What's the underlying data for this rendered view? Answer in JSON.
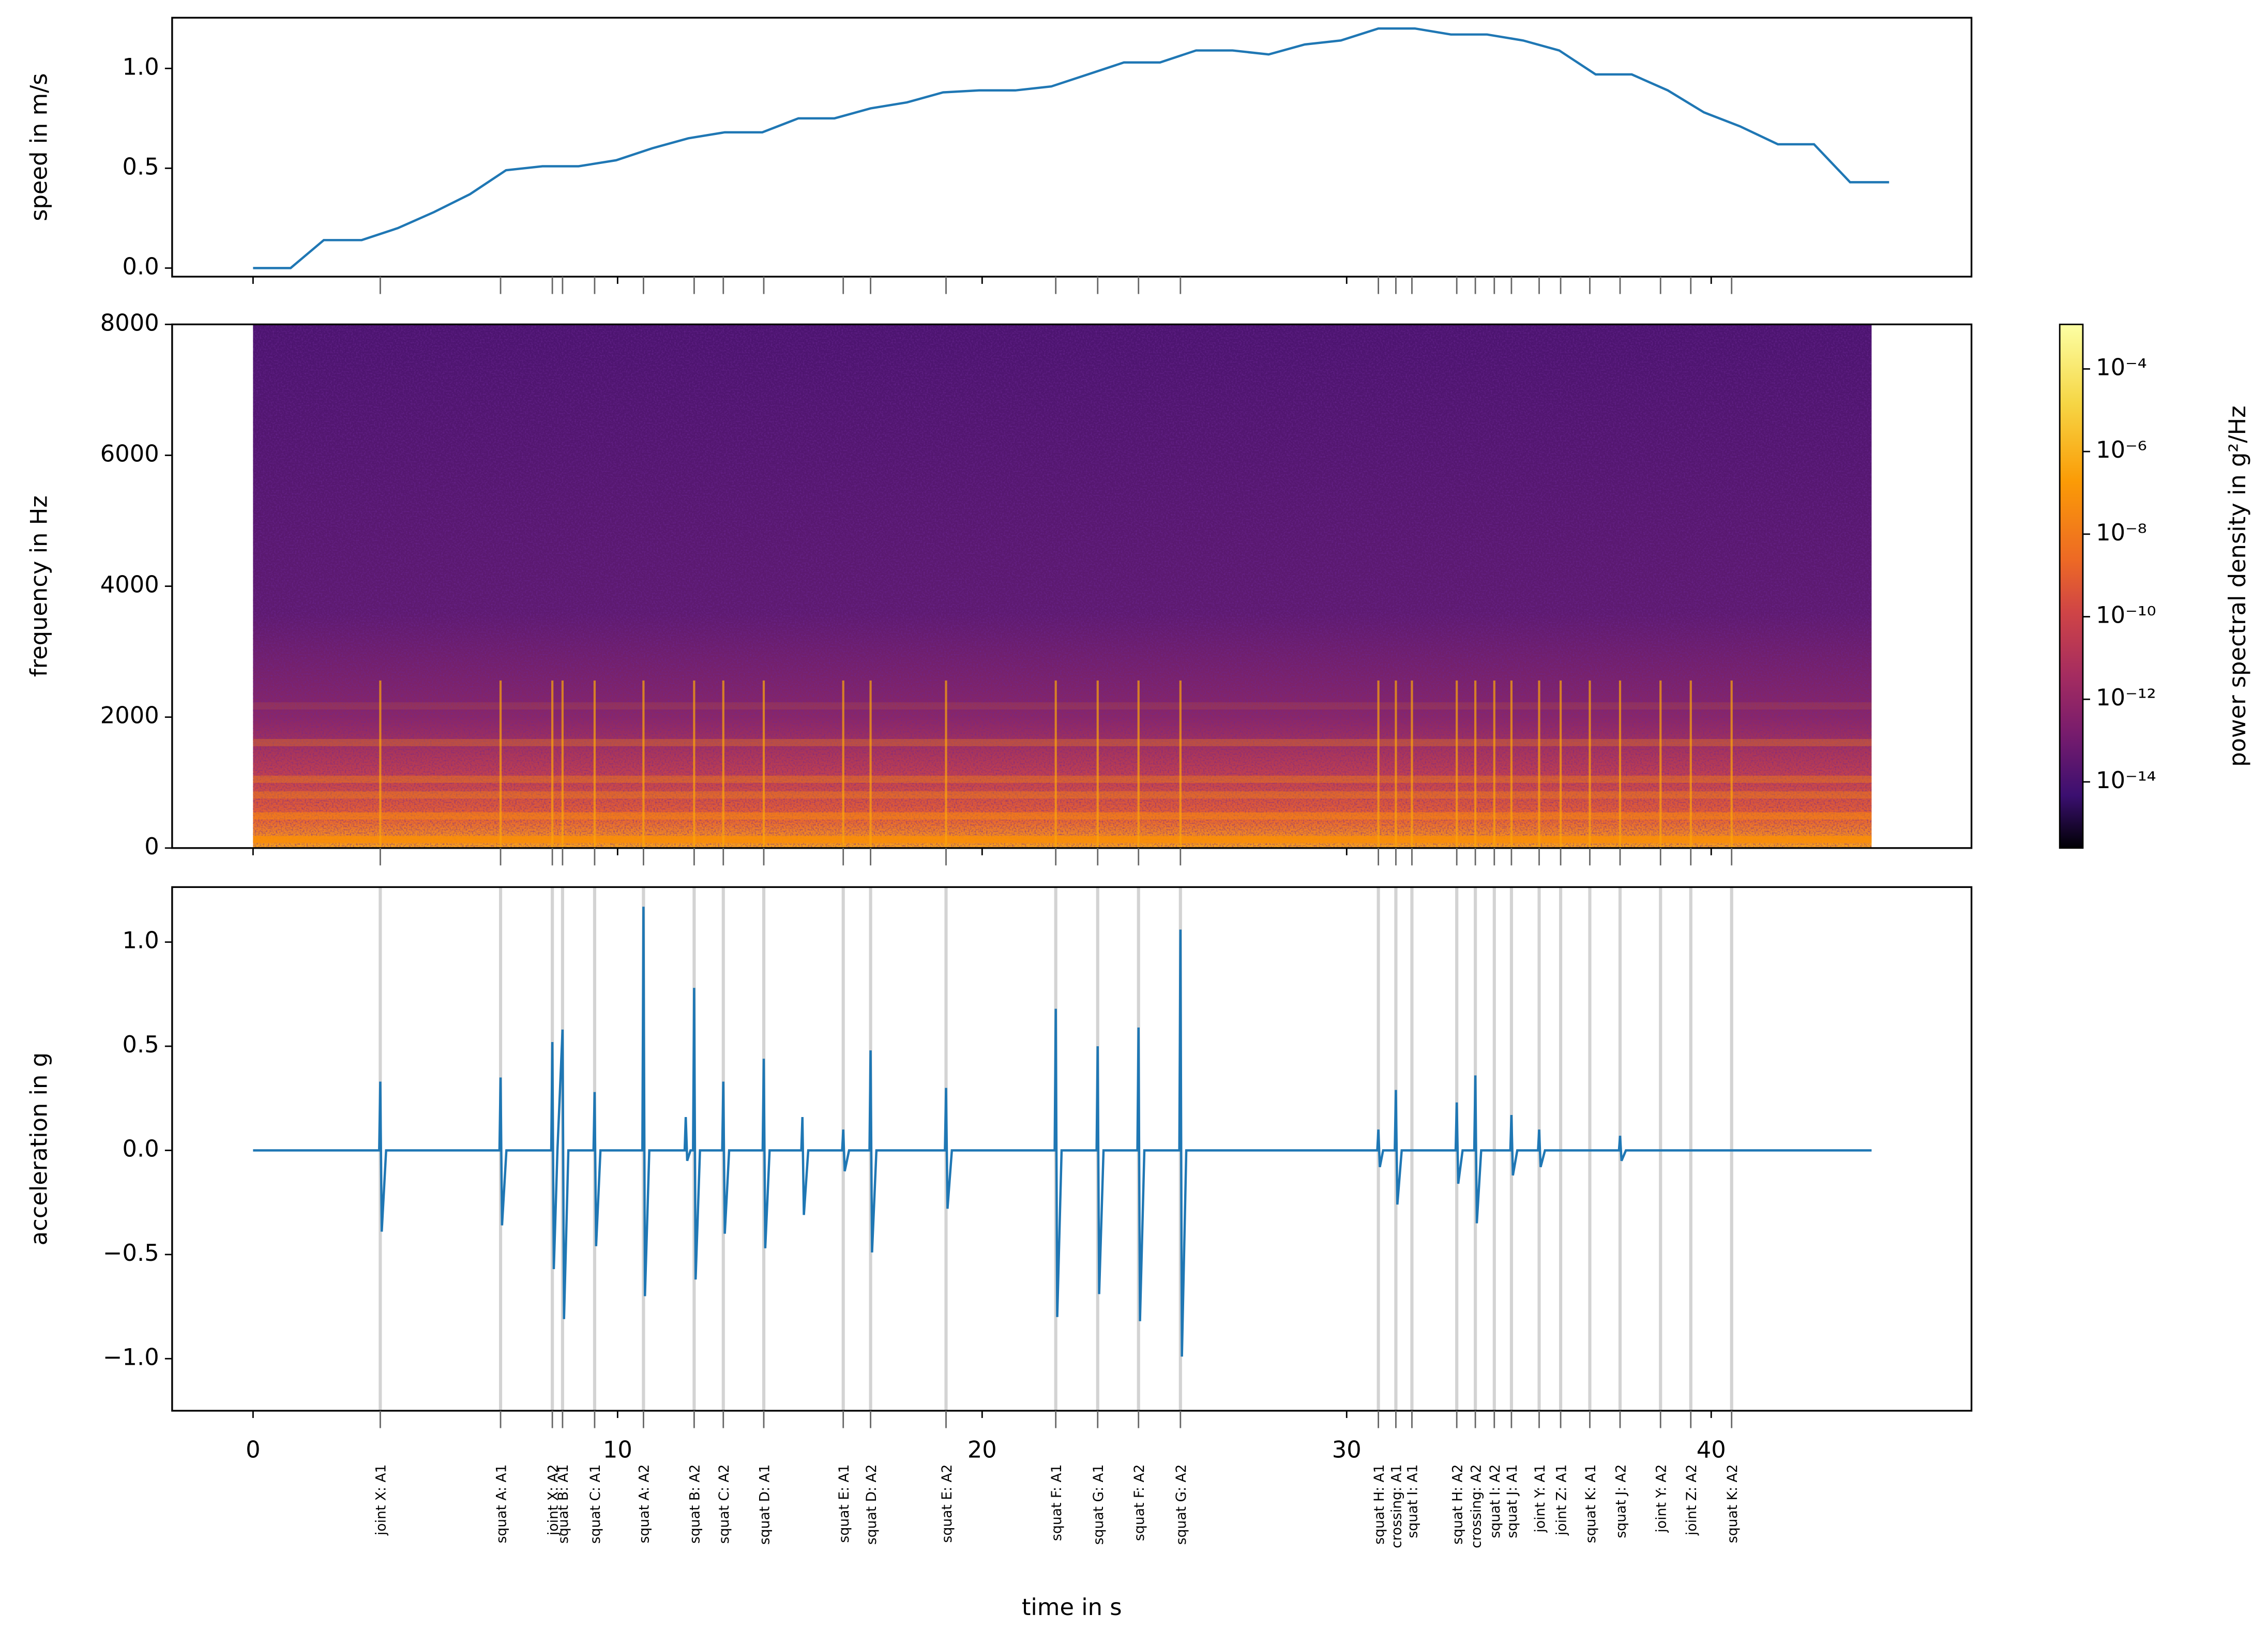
{
  "chart_data": [
    {
      "type": "line",
      "ylabel": "speed in m/s",
      "color": "#1f77b4",
      "x": [
        0,
        1.03,
        1.94,
        2.98,
        3.97,
        4.96,
        5.95,
        6.94,
        7.94,
        8.93,
        9.96,
        10.95,
        11.94,
        12.94,
        13.97,
        14.96,
        15.95,
        16.94,
        17.94,
        18.93,
        19.92,
        20.91,
        21.9,
        22.9,
        23.89,
        24.88,
        25.87,
        26.87,
        27.86,
        28.85,
        29.84,
        30.87,
        31.87,
        32.86,
        33.85,
        34.84,
        35.83,
        36.83,
        37.82,
        38.81,
        39.8,
        40.79,
        41.83,
        42.82,
        43.81,
        44.88
      ],
      "values": [
        0,
        0,
        0.14,
        0.14,
        0.2,
        0.28,
        0.37,
        0.49,
        0.51,
        0.51,
        0.54,
        0.6,
        0.65,
        0.68,
        0.68,
        0.75,
        0.75,
        0.8,
        0.83,
        0.88,
        0.89,
        0.89,
        0.91,
        0.97,
        1.03,
        1.03,
        1.09,
        1.09,
        1.07,
        1.12,
        1.14,
        1.2,
        1.2,
        1.17,
        1.17,
        1.14,
        1.09,
        0.97,
        0.97,
        0.89,
        0.78,
        0.71,
        0.62,
        0.62,
        0.43,
        0.43
      ],
      "xlim": [
        -2.22,
        47.14
      ],
      "xticks": [
        0,
        10,
        20,
        30,
        40
      ],
      "show_xtick_labels": false,
      "ylim": [
        -0.043,
        1.254
      ],
      "yticks": [
        {
          "value": 0,
          "label": "0.0"
        },
        {
          "value": 0.5,
          "label": "0.5"
        },
        {
          "value": 1,
          "label": "1.0"
        }
      ]
    },
    {
      "type": "spectrogram",
      "ylabel": "frequency in Hz",
      "time_extent": [
        0,
        44.4
      ],
      "xlim": [
        -2.22,
        47.14
      ],
      "xticks": [
        0,
        10,
        20,
        30,
        40
      ],
      "show_xtick_labels": false,
      "ylim": [
        0,
        8000
      ],
      "yticks": [
        0,
        2000,
        4000,
        6000,
        8000
      ],
      "colorbar": {
        "label": "power spectral density in g²/Hz",
        "log": true,
        "colormap": "inferno",
        "clim": [
          2.5e-16,
          0.0012
        ],
        "ticks": [
          {
            "value": 0.0001,
            "label": "10⁻⁴"
          },
          {
            "value": 1e-06,
            "label": "10⁻⁶"
          },
          {
            "value": 1e-08,
            "label": "10⁻⁸"
          },
          {
            "value": 1e-10,
            "label": "10⁻¹⁰"
          },
          {
            "value": 1e-12,
            "label": "10⁻¹²"
          },
          {
            "value": 1e-14,
            "label": "10⁻¹⁴"
          }
        ]
      }
    },
    {
      "type": "line",
      "ylabel": "acceleration in g",
      "xlabel": "time in s",
      "color": "#1f77b4",
      "x": [
        0,
        3.46,
        3.49,
        3.53,
        3.65,
        6.76,
        6.79,
        6.83,
        6.95,
        8.18,
        8.21,
        8.25,
        8.35,
        8.49,
        8.53,
        8.65,
        9.34,
        9.37,
        9.41,
        9.53,
        10.68,
        10.71,
        10.75,
        10.87,
        11.84,
        11.87,
        11.91,
        12.0,
        12.07,
        12.1,
        12.14,
        12.26,
        12.87,
        12.9,
        12.94,
        13.06,
        13.98,
        14.01,
        14.05,
        14.17,
        15.04,
        15.07,
        15.11,
        15.23,
        16.16,
        16.19,
        16.23,
        16.35,
        16.91,
        16.94,
        16.98,
        17.1,
        18.98,
        19.01,
        19.05,
        19.17,
        21.99,
        22.02,
        22.06,
        22.18,
        23.14,
        23.17,
        23.21,
        23.33,
        24.26,
        24.29,
        24.33,
        24.45,
        25.41,
        25.44,
        25.48,
        25.6,
        30.84,
        30.87,
        30.91,
        31.0,
        31.32,
        31.35,
        31.39,
        31.51,
        32.99,
        33.02,
        33.06,
        33.18,
        33.5,
        33.53,
        33.57,
        33.69,
        34.49,
        34.52,
        34.56,
        34.68,
        35.25,
        35.28,
        35.32,
        35.44,
        37.47,
        37.5,
        37.54,
        37.66,
        44.4
      ],
      "values": [
        0,
        0,
        0.33,
        -0.39,
        0,
        0,
        0.35,
        -0.36,
        0,
        0,
        0.52,
        -0.57,
        0,
        0.58,
        -0.81,
        0,
        0,
        0.28,
        -0.46,
        0,
        0,
        1.17,
        -0.7,
        0,
        0,
        0.16,
        -0.05,
        0,
        0,
        0.78,
        -0.62,
        0,
        0,
        0.33,
        -0.4,
        0,
        0,
        0.44,
        -0.47,
        0,
        0,
        0.16,
        -0.31,
        0,
        0,
        0.1,
        -0.1,
        0,
        0,
        0.48,
        -0.49,
        0,
        0,
        0.3,
        -0.28,
        0,
        0,
        0.68,
        -0.8,
        0,
        0,
        0.5,
        -0.69,
        0,
        0,
        0.59,
        -0.82,
        0,
        0,
        1.06,
        -0.99,
        0,
        0,
        0.1,
        -0.08,
        0,
        0,
        0.29,
        -0.26,
        0,
        0,
        0.23,
        -0.16,
        0,
        0,
        0.36,
        -0.35,
        0,
        0,
        0.17,
        -0.12,
        0,
        0,
        0.1,
        -0.08,
        0,
        0,
        0.07,
        -0.05,
        0,
        0
      ],
      "xlim": [
        -2.22,
        47.14
      ],
      "xticks": [
        0,
        10,
        20,
        30,
        40
      ],
      "show_xtick_labels": true,
      "ylim": [
        -1.25,
        1.264
      ],
      "yticks": [
        {
          "value": -1,
          "label": "−1.0"
        },
        {
          "value": -0.5,
          "label": "−0.5"
        },
        {
          "value": 0,
          "label": "0.0"
        },
        {
          "value": 0.5,
          "label": "0.5"
        },
        {
          "value": 1,
          "label": "1.0"
        }
      ],
      "events": {
        "x": [
          3.49,
          6.79,
          8.21,
          8.49,
          9.37,
          10.71,
          12.1,
          12.9,
          14.01,
          16.19,
          16.94,
          19.01,
          22.02,
          23.17,
          24.29,
          25.44,
          30.87,
          31.35,
          31.79,
          33.02,
          33.53,
          34.05,
          34.52,
          35.28,
          35.87,
          36.67,
          37.5,
          38.61,
          39.44,
          40.56
        ],
        "labels": [
          "joint X: A1",
          "squat A: A1",
          "joint X: A2",
          "squat B: A1",
          "squat C: A1",
          "squat A: A2",
          "squat B: A2",
          "squat C: A2",
          "squat D: A1",
          "squat E: A1",
          "squat D: A2",
          "squat E: A2",
          "squat F: A1",
          "squat G: A1",
          "squat F: A2",
          "squat G: A2",
          "squat H: A1",
          "crossing: A1",
          "squat I: A1",
          "squat H: A2",
          "crossing: A2",
          "squat I: A2",
          "squat J: A1",
          "joint Y: A1",
          "joint Z: A1",
          "squat K: A1",
          "squat J: A2",
          "joint Y: A2",
          "joint Z: A2",
          "squat K: A2"
        ]
      }
    }
  ]
}
